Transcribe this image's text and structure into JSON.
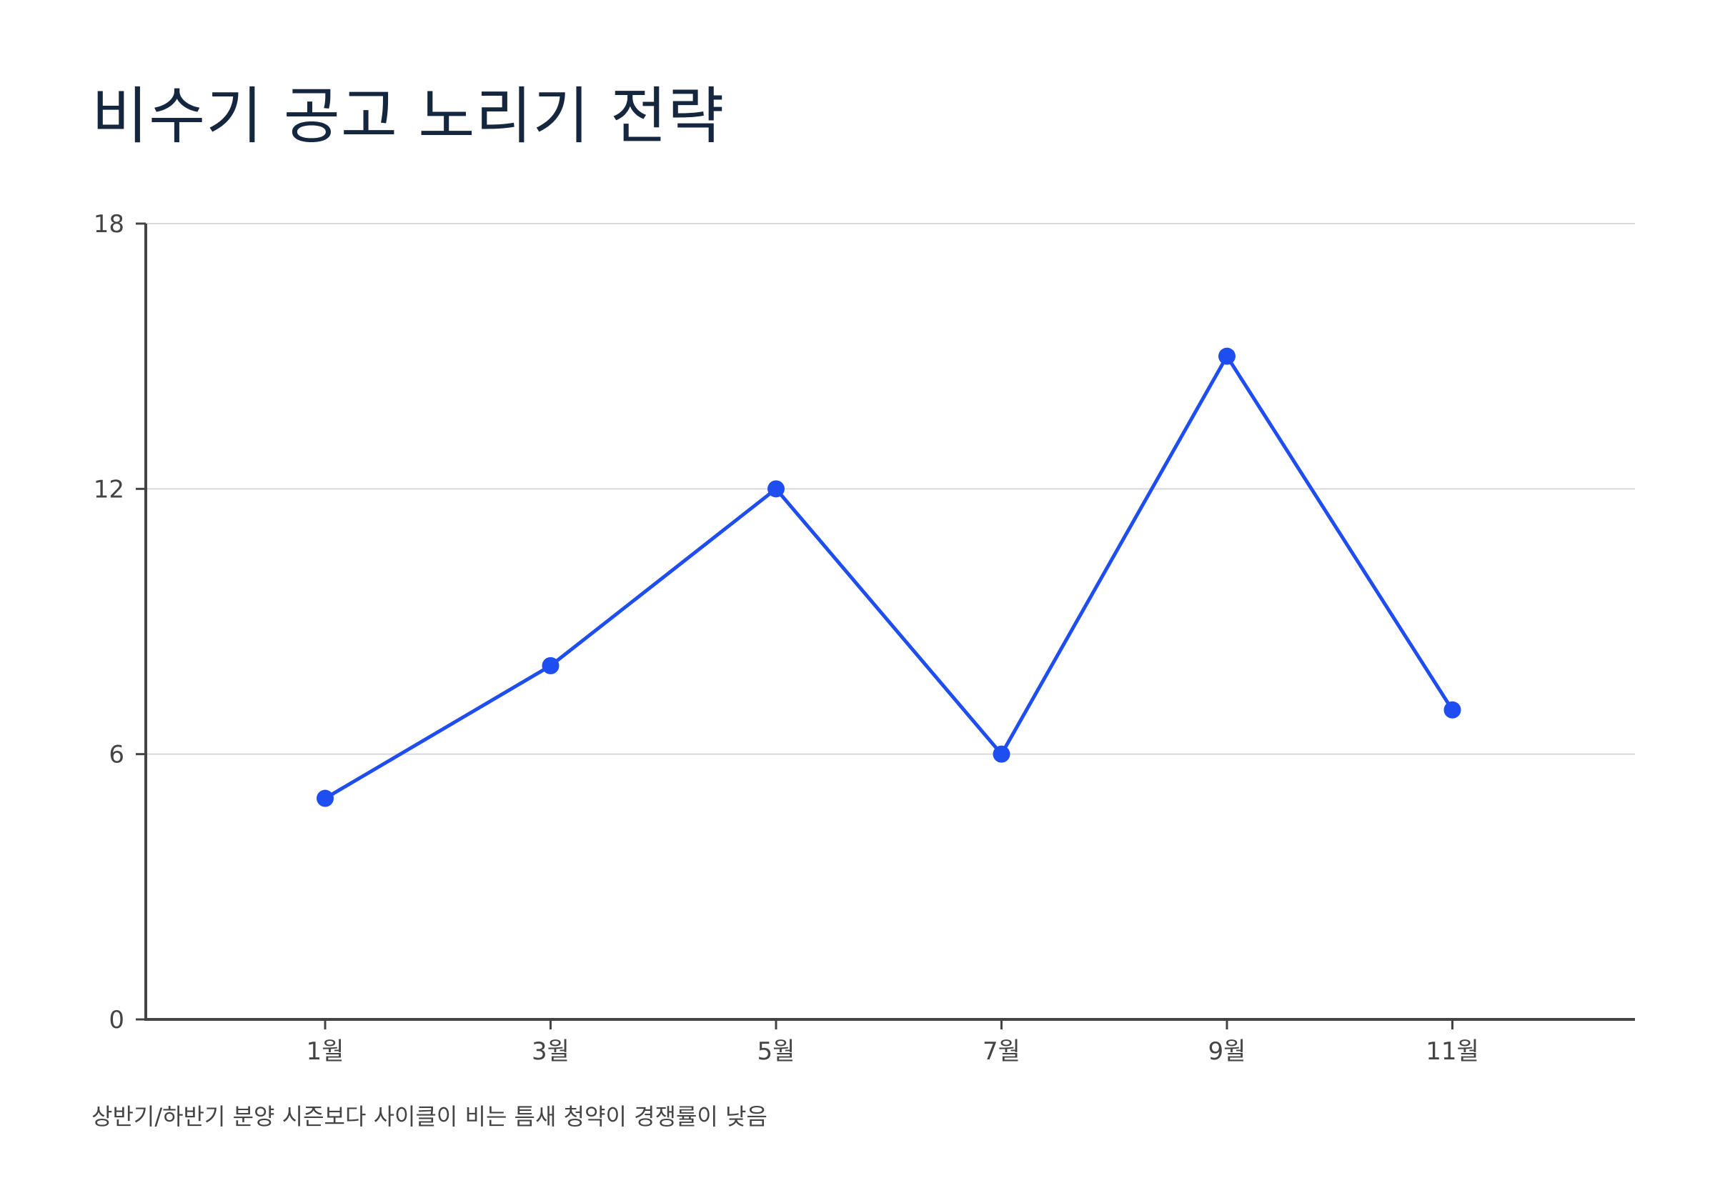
{
  "chart_data": {
    "type": "line",
    "title": "비수기 공고 노리기 전략",
    "footnote": "상반기/하반기 분양 시즌보다 사이클이 비는 틈새 청약이 경쟁률이 낮음",
    "xlabel": "",
    "ylabel": "",
    "categories": [
      "1월",
      "3월",
      "5월",
      "7월",
      "9월",
      "11월"
    ],
    "series": [
      {
        "values": [
          5,
          8,
          12,
          6,
          15,
          7
        ]
      }
    ],
    "ylim": [
      0,
      18
    ],
    "yticks": [
      0,
      6,
      12,
      18
    ],
    "grid": true,
    "legend": "none",
    "colors": {
      "line": "#1f4ef0",
      "axis": "#444444",
      "grid": "#d9d9d9",
      "title": "#15263f",
      "text": "#444444"
    }
  }
}
